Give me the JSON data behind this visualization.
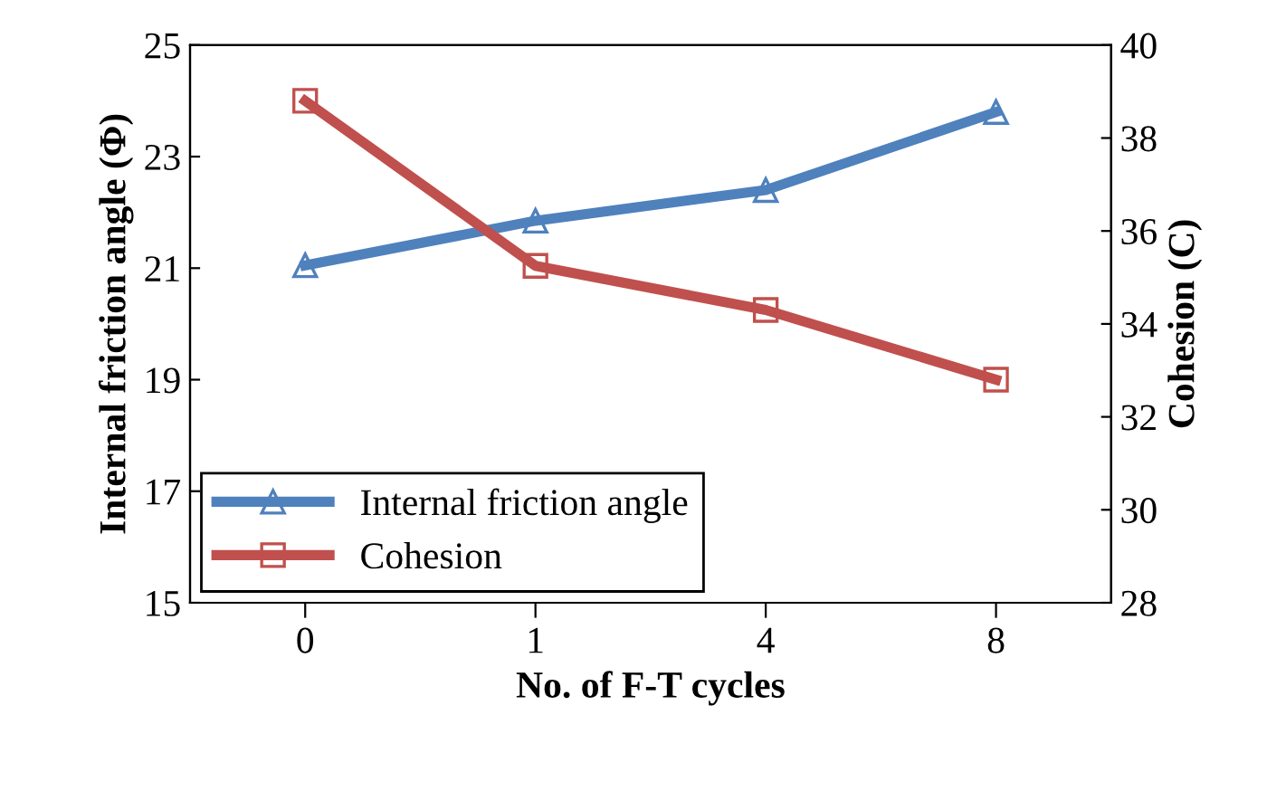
{
  "chart_data": {
    "type": "line",
    "xlabel": "No. of F-T cycles",
    "ylabel": "Internal friction angle (Φ)",
    "y2label": "Cohesion (C)",
    "categories": [
      "0",
      "1",
      "4",
      "8"
    ],
    "series": [
      {
        "name": "Internal friction angle",
        "color": "#4f81bd",
        "values": [
          21.05,
          21.85,
          22.4,
          23.8
        ],
        "marker": "triangle"
      },
      {
        "name": "Cohesion",
        "color": "#c0504d",
        "values": [
          38.8,
          35.25,
          34.3,
          32.8
        ],
        "marker": "square",
        "axis": "y2"
      }
    ],
    "ylim": [
      15,
      25
    ],
    "yticks": [
      15,
      17,
      19,
      21,
      23,
      25
    ],
    "y2lim": [
      28,
      40
    ],
    "y2ticks": [
      28,
      30,
      32,
      34,
      36,
      38,
      40
    ],
    "legend": "bottom left",
    "grid": false,
    "line_style": "solid"
  }
}
